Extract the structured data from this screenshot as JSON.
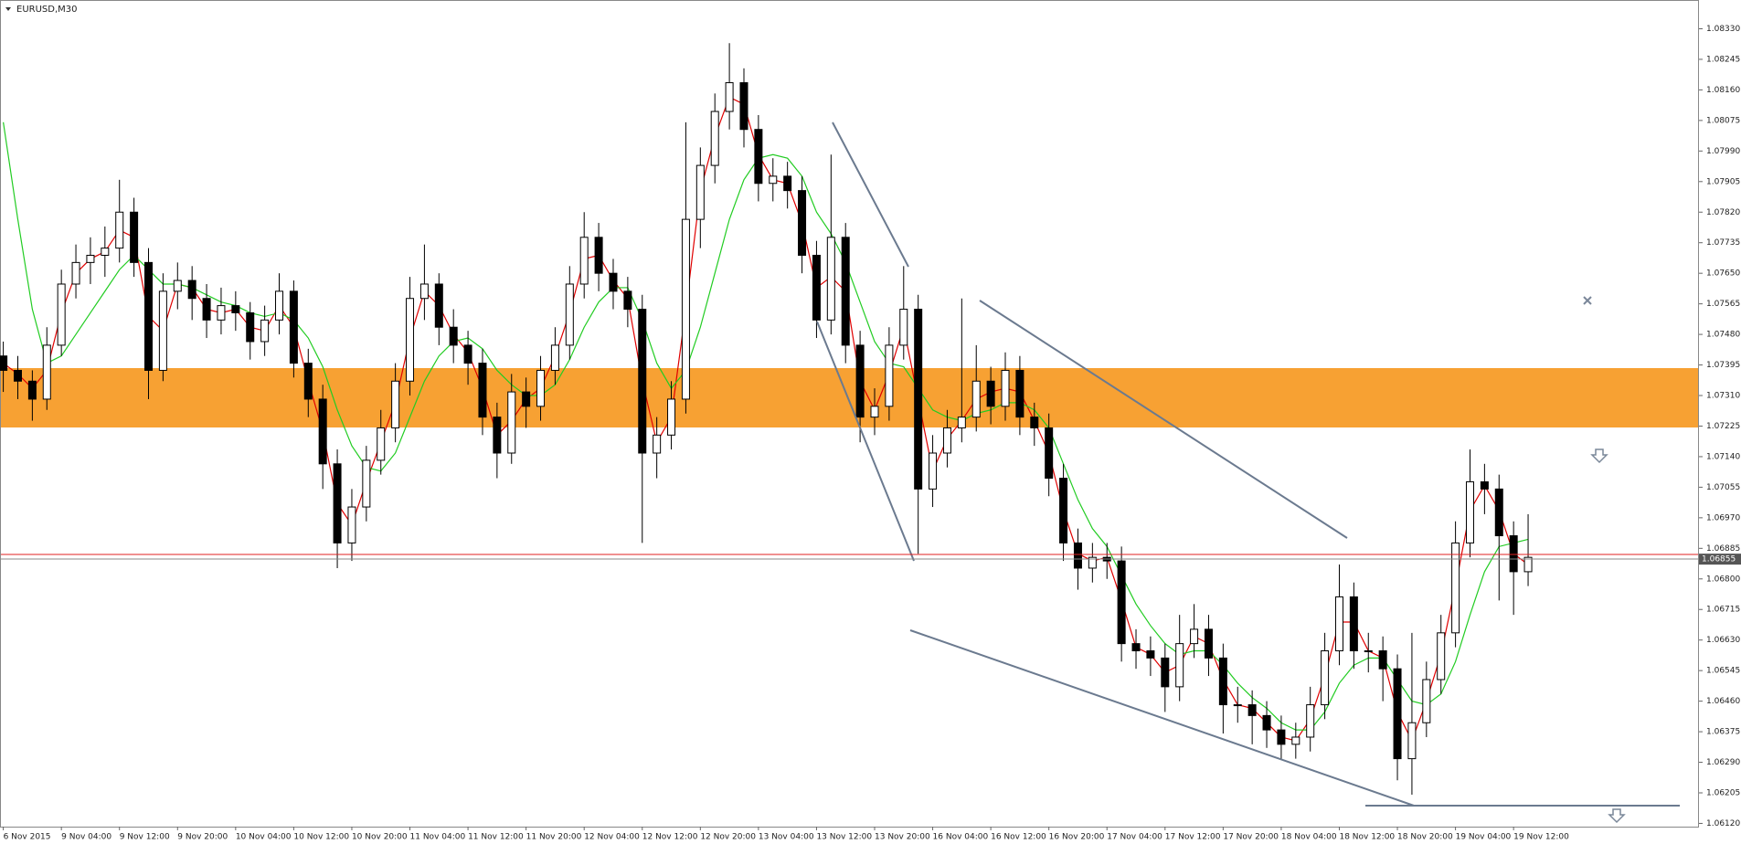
{
  "chart_data": {
    "type": "candlestick",
    "title": "EURUSD,M30",
    "up_color": "#ffffff",
    "down_color": "#000000",
    "outline_color": "#000000",
    "ylim": [
      1.06111,
      1.0841
    ],
    "yticks": [
      {
        "value": 1.0833,
        "label": "1.08330"
      },
      {
        "value": 1.08245,
        "label": "1.08245"
      },
      {
        "value": 1.0816,
        "label": "1.08160"
      },
      {
        "value": 1.08075,
        "label": "1.08075"
      },
      {
        "value": 1.0799,
        "label": "1.07990"
      },
      {
        "value": 1.07905,
        "label": "1.07905"
      },
      {
        "value": 1.0782,
        "label": "1.07820"
      },
      {
        "value": 1.07735,
        "label": "1.07735"
      },
      {
        "value": 1.0765,
        "label": "1.07650"
      },
      {
        "value": 1.07565,
        "label": "1.07565"
      },
      {
        "value": 1.0748,
        "label": "1.07480"
      },
      {
        "value": 1.07395,
        "label": "1.07395"
      },
      {
        "value": 1.0731,
        "label": "1.07310"
      },
      {
        "value": 1.07225,
        "label": "1.07225"
      },
      {
        "value": 1.0714,
        "label": "1.07140"
      },
      {
        "value": 1.07055,
        "label": "1.07055"
      },
      {
        "value": 1.0697,
        "label": "1.06970"
      },
      {
        "value": 1.06885,
        "label": "1.06885"
      },
      {
        "value": 1.068,
        "label": "1.06800"
      },
      {
        "value": 1.06715,
        "label": "1.06715"
      },
      {
        "value": 1.0663,
        "label": "1.06630"
      },
      {
        "value": 1.06545,
        "label": "1.06545"
      },
      {
        "value": 1.0646,
        "label": "1.06460"
      },
      {
        "value": 1.06375,
        "label": "1.06375"
      },
      {
        "value": 1.0629,
        "label": "1.06290"
      },
      {
        "value": 1.06205,
        "label": "1.06205"
      },
      {
        "value": 1.0612,
        "label": "1.06120"
      }
    ],
    "x_labels": [
      "6 Nov 2015",
      "9 Nov 04:00",
      "9 Nov 12:00",
      "9 Nov 20:00",
      "10 Nov 04:00",
      "10 Nov 12:00",
      "10 Nov 20:00",
      "11 Nov 04:00",
      "11 Nov 12:00",
      "11 Nov 20:00",
      "12 Nov 04:00",
      "12 Nov 12:00",
      "12 Nov 20:00",
      "13 Nov 04:00",
      "13 Nov 12:00",
      "13 Nov 20:00",
      "16 Nov 04:00",
      "16 Nov 12:00",
      "16 Nov 20:00",
      "17 Nov 04:00",
      "17 Nov 12:00",
      "17 Nov 20:00",
      "18 Nov 04:00",
      "18 Nov 12:00",
      "18 Nov 20:00",
      "19 Nov 04:00",
      "19 Nov 12:00"
    ],
    "current_price": {
      "value": 1.06855,
      "label": "1.06855"
    },
    "candles": [
      [
        1.0742,
        1.0746,
        1.0732,
        1.0738
      ],
      [
        1.0738,
        1.0742,
        1.073,
        1.0735
      ],
      [
        1.0735,
        1.0738,
        1.0724,
        1.073
      ],
      [
        1.073,
        1.075,
        1.0727,
        1.0745
      ],
      [
        1.0745,
        1.0766,
        1.0742,
        1.0762
      ],
      [
        1.0762,
        1.0773,
        1.0758,
        1.0768
      ],
      [
        1.0768,
        1.0775,
        1.0762,
        1.077
      ],
      [
        1.077,
        1.0778,
        1.0764,
        1.0772
      ],
      [
        1.0772,
        1.0791,
        1.0768,
        1.0782
      ],
      [
        1.0782,
        1.0786,
        1.0764,
        1.0768
      ],
      [
        1.0768,
        1.0772,
        1.073,
        1.0738
      ],
      [
        1.0738,
        1.0765,
        1.0735,
        1.076
      ],
      [
        1.076,
        1.0768,
        1.0755,
        1.0763
      ],
      [
        1.0763,
        1.0767,
        1.0752,
        1.0758
      ],
      [
        1.0758,
        1.0762,
        1.0747,
        1.0752
      ],
      [
        1.0752,
        1.0761,
        1.0748,
        1.0756
      ],
      [
        1.0756,
        1.076,
        1.0749,
        1.0754
      ],
      [
        1.0754,
        1.0757,
        1.0741,
        1.0746
      ],
      [
        1.0746,
        1.0756,
        1.0742,
        1.0752
      ],
      [
        1.0752,
        1.0765,
        1.0748,
        1.076
      ],
      [
        1.076,
        1.0763,
        1.0736,
        1.074
      ],
      [
        1.074,
        1.0744,
        1.0725,
        1.073
      ],
      [
        1.073,
        1.0734,
        1.0705,
        1.0712
      ],
      [
        1.0712,
        1.0716,
        1.0683,
        1.069
      ],
      [
        1.069,
        1.0705,
        1.0685,
        1.07
      ],
      [
        1.07,
        1.0717,
        1.0696,
        1.0713
      ],
      [
        1.0713,
        1.0727,
        1.0709,
        1.0722
      ],
      [
        1.0722,
        1.074,
        1.0718,
        1.0735
      ],
      [
        1.0735,
        1.0764,
        1.0731,
        1.0758
      ],
      [
        1.0758,
        1.0773,
        1.0752,
        1.0762
      ],
      [
        1.0762,
        1.0765,
        1.0745,
        1.075
      ],
      [
        1.075,
        1.0755,
        1.074,
        1.0745
      ],
      [
        1.0745,
        1.0749,
        1.0734,
        1.074
      ],
      [
        1.074,
        1.0744,
        1.072,
        1.0725
      ],
      [
        1.0725,
        1.0729,
        1.0708,
        1.0715
      ],
      [
        1.0715,
        1.0737,
        1.0712,
        1.0732
      ],
      [
        1.0732,
        1.0736,
        1.0722,
        1.0728
      ],
      [
        1.0728,
        1.0742,
        1.0724,
        1.0738
      ],
      [
        1.0738,
        1.075,
        1.0734,
        1.0745
      ],
      [
        1.0745,
        1.0767,
        1.0741,
        1.0762
      ],
      [
        1.0762,
        1.0782,
        1.0758,
        1.0775
      ],
      [
        1.0775,
        1.0779,
        1.076,
        1.0765
      ],
      [
        1.0765,
        1.0769,
        1.0755,
        1.076
      ],
      [
        1.076,
        1.0764,
        1.075,
        1.0755
      ],
      [
        1.0755,
        1.0759,
        1.069,
        1.0715
      ],
      [
        1.0715,
        1.0725,
        1.0708,
        1.072
      ],
      [
        1.072,
        1.0735,
        1.0716,
        1.073
      ],
      [
        1.073,
        1.0807,
        1.0726,
        1.078
      ],
      [
        1.078,
        1.08,
        1.0772,
        1.0795
      ],
      [
        1.0795,
        1.0815,
        1.079,
        1.081
      ],
      [
        1.081,
        1.0829,
        1.0805,
        1.0818
      ],
      [
        1.0818,
        1.0822,
        1.08,
        1.0805
      ],
      [
        1.0805,
        1.0809,
        1.0785,
        1.079
      ],
      [
        1.079,
        1.0797,
        1.0785,
        1.0792
      ],
      [
        1.0792,
        1.0796,
        1.0783,
        1.0788
      ],
      [
        1.0788,
        1.0792,
        1.0765,
        1.077
      ],
      [
        1.077,
        1.0774,
        1.0747,
        1.0752
      ],
      [
        1.0752,
        1.0798,
        1.0748,
        1.0775
      ],
      [
        1.0775,
        1.0779,
        1.074,
        1.0745
      ],
      [
        1.0745,
        1.0749,
        1.0718,
        1.0725
      ],
      [
        1.0725,
        1.0733,
        1.072,
        1.0728
      ],
      [
        1.0728,
        1.075,
        1.0724,
        1.0745
      ],
      [
        1.0745,
        1.0767,
        1.0741,
        1.0755
      ],
      [
        1.0755,
        1.0759,
        1.0687,
        1.0705
      ],
      [
        1.0705,
        1.072,
        1.07,
        1.0715
      ],
      [
        1.0715,
        1.0727,
        1.0711,
        1.0722
      ],
      [
        1.0722,
        1.0758,
        1.0718,
        1.0725
      ],
      [
        1.0725,
        1.0745,
        1.0721,
        1.0735
      ],
      [
        1.0735,
        1.0739,
        1.0723,
        1.0728
      ],
      [
        1.0728,
        1.0743,
        1.0724,
        1.0738
      ],
      [
        1.0738,
        1.0742,
        1.072,
        1.0725
      ],
      [
        1.0725,
        1.0729,
        1.0717,
        1.0722
      ],
      [
        1.0722,
        1.0726,
        1.0703,
        1.0708
      ],
      [
        1.0708,
        1.0712,
        1.0685,
        1.069
      ],
      [
        1.069,
        1.0694,
        1.0677,
        1.0683
      ],
      [
        1.0683,
        1.069,
        1.0679,
        1.0686
      ],
      [
        1.0686,
        1.069,
        1.068,
        1.0685
      ],
      [
        1.0685,
        1.0689,
        1.0657,
        1.0662
      ],
      [
        1.0662,
        1.0666,
        1.0655,
        1.066
      ],
      [
        1.066,
        1.0664,
        1.0653,
        1.0658
      ],
      [
        1.0658,
        1.0662,
        1.0643,
        1.065
      ],
      [
        1.065,
        1.067,
        1.0646,
        1.0662
      ],
      [
        1.0662,
        1.0673,
        1.0658,
        1.0666
      ],
      [
        1.0666,
        1.067,
        1.0653,
        1.0658
      ],
      [
        1.0658,
        1.0662,
        1.0637,
        1.0645
      ],
      [
        1.0645,
        1.065,
        1.064,
        1.0645
      ],
      [
        1.0645,
        1.0649,
        1.0634,
        1.0642
      ],
      [
        1.0642,
        1.0646,
        1.0633,
        1.0638
      ],
      [
        1.0638,
        1.0642,
        1.063,
        1.0634
      ],
      [
        1.0634,
        1.064,
        1.063,
        1.0636
      ],
      [
        1.0636,
        1.065,
        1.0632,
        1.0645
      ],
      [
        1.0645,
        1.0665,
        1.0641,
        1.066
      ],
      [
        1.066,
        1.0684,
        1.0656,
        1.0675
      ],
      [
        1.0675,
        1.0679,
        1.0655,
        1.066
      ],
      [
        1.066,
        1.0665,
        1.0654,
        1.066
      ],
      [
        1.066,
        1.0664,
        1.0646,
        1.0655
      ],
      [
        1.0655,
        1.0659,
        1.0624,
        1.063
      ],
      [
        1.063,
        1.0665,
        1.062,
        1.064
      ],
      [
        1.064,
        1.0657,
        1.0636,
        1.0652
      ],
      [
        1.0652,
        1.067,
        1.0648,
        1.0665
      ],
      [
        1.0665,
        1.0696,
        1.0661,
        1.069
      ],
      [
        1.069,
        1.0716,
        1.0686,
        1.0707
      ],
      [
        1.0707,
        1.0712,
        1.0698,
        1.0705
      ],
      [
        1.0705,
        1.0709,
        1.0674,
        1.0692
      ],
      [
        1.0692,
        1.0696,
        1.067,
        1.0682
      ],
      [
        1.0682,
        1.0698,
        1.0678,
        1.0686
      ]
    ],
    "moving_averages": [
      {
        "color": "#e00000",
        "values": [
          1.074,
          1.0737,
          1.0733,
          1.0738,
          1.0754,
          1.0765,
          1.0769,
          1.0771,
          1.0777,
          1.0775,
          1.0753,
          1.0749,
          1.0762,
          1.0761,
          1.0755,
          1.0754,
          1.0755,
          1.075,
          1.0749,
          1.0756,
          1.075,
          1.0735,
          1.0721,
          1.0701,
          1.0695,
          1.0707,
          1.0718,
          1.0729,
          1.0747,
          1.076,
          1.0756,
          1.0748,
          1.0743,
          1.0733,
          1.072,
          1.0724,
          1.073,
          1.0733,
          1.0742,
          1.0754,
          1.0769,
          1.077,
          1.0763,
          1.0758,
          1.0735,
          1.0718,
          1.0725,
          1.0755,
          1.0788,
          1.0803,
          1.0814,
          1.0812,
          1.0798,
          1.0791,
          1.079,
          1.0779,
          1.0761,
          1.0764,
          1.076,
          1.0735,
          1.0727,
          1.0737,
          1.075,
          1.073,
          1.071,
          1.0719,
          1.0724,
          1.073,
          1.0732,
          1.0733,
          1.0732,
          1.0724,
          1.0715,
          1.0699,
          1.0687,
          1.0685,
          1.0686,
          1.0674,
          1.0661,
          1.0659,
          1.0654,
          1.0656,
          1.0664,
          1.0662,
          1.0652,
          1.0645,
          1.0644,
          1.064,
          1.0636,
          1.0635,
          1.0641,
          1.0653,
          1.0668,
          1.0668,
          1.066,
          1.0658,
          1.0643,
          1.0635,
          1.0646,
          1.0659,
          1.0678,
          1.0699,
          1.0706,
          1.0699,
          1.0687,
          1.0684
        ]
      },
      {
        "color": "#22cc22",
        "values": [
          1.0807,
          1.078,
          1.0755,
          1.074,
          1.0742,
          1.0748,
          1.0754,
          1.076,
          1.0766,
          1.077,
          1.0766,
          1.0762,
          1.0762,
          1.0761,
          1.0759,
          1.0757,
          1.0756,
          1.0754,
          1.0753,
          1.0754,
          1.0752,
          1.0747,
          1.0739,
          1.0727,
          1.0717,
          1.0711,
          1.071,
          1.0715,
          1.0725,
          1.0735,
          1.0742,
          1.0746,
          1.0747,
          1.0744,
          1.0738,
          1.0734,
          1.0731,
          1.0731,
          1.0734,
          1.0741,
          1.075,
          1.0757,
          1.0761,
          1.0761,
          1.0752,
          1.074,
          1.0733,
          1.0738,
          1.075,
          1.0765,
          1.078,
          1.0791,
          1.0797,
          1.0798,
          1.0797,
          1.0792,
          1.0782,
          1.0776,
          1.0768,
          1.0757,
          1.0746,
          1.074,
          1.0739,
          1.0733,
          1.0727,
          1.0725,
          1.0724,
          1.0726,
          1.0727,
          1.0729,
          1.0729,
          1.0727,
          1.0722,
          1.0712,
          1.0702,
          1.0694,
          1.0689,
          1.0681,
          1.0673,
          1.0667,
          1.0662,
          1.0659,
          1.066,
          1.066,
          1.0656,
          1.0651,
          1.0647,
          1.0644,
          1.064,
          1.0638,
          1.0638,
          1.0643,
          1.0651,
          1.0656,
          1.0658,
          1.0658,
          1.0652,
          1.0646,
          1.0645,
          1.0648,
          1.0657,
          1.067,
          1.0682,
          1.0689,
          1.069,
          1.0691
        ]
      }
    ]
  }
}
